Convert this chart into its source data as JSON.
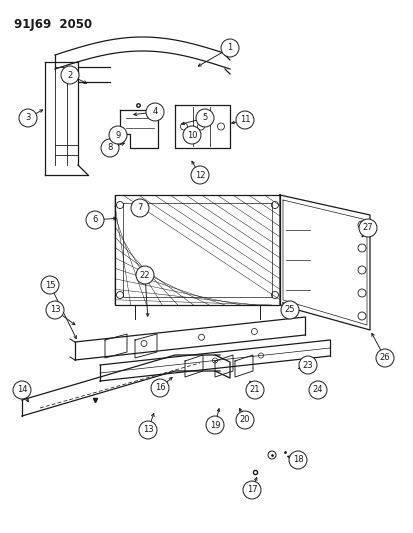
{
  "title": "91J69  2050",
  "bg": "#ffffff",
  "lc": "#1a1a1a",
  "figsize": [
    4.14,
    5.33
  ],
  "dpi": 100,
  "callout_r": 0.022,
  "callout_fs": 6.0
}
